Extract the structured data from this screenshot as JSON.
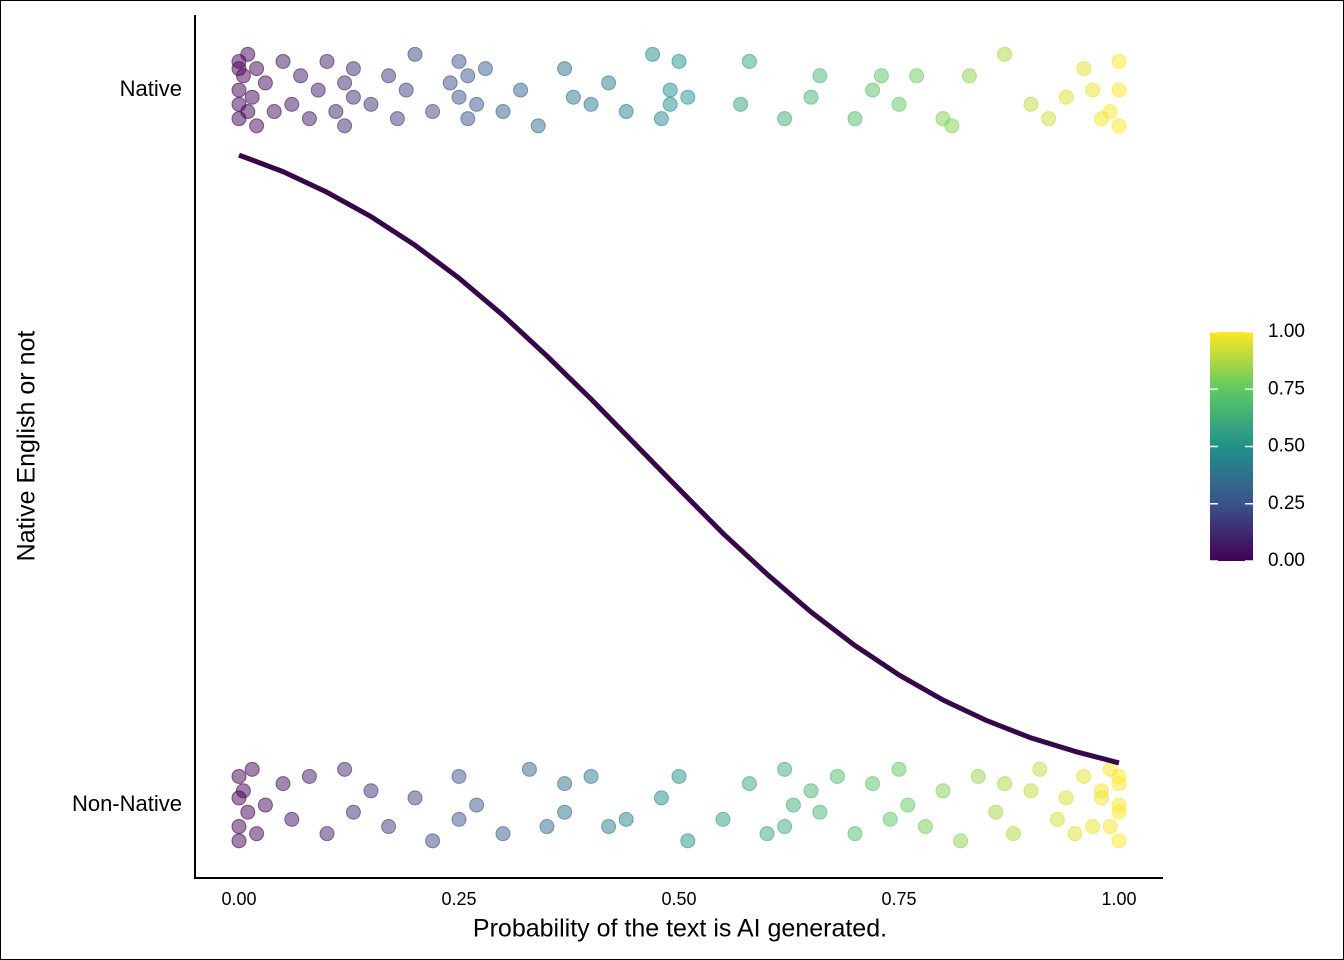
{
  "chart_data": {
    "type": "scatter",
    "xlabel": "Probability of the text is  AI generated.",
    "ylabel": "Native English or not",
    "xlim": [
      -0.05,
      1.05
    ],
    "xticks": [
      {
        "value": 0,
        "label": "0.00"
      },
      {
        "value": 0.25,
        "label": "0.25"
      },
      {
        "value": 0.5,
        "label": "0.50"
      },
      {
        "value": 0.75,
        "label": "0.75"
      },
      {
        "value": 1,
        "label": "1.00"
      }
    ],
    "ylim": [
      -0.102,
      1.105
    ],
    "yticks": [
      {
        "value": 0,
        "label": "Non-Native"
      },
      {
        "value": 1,
        "label": "Native"
      }
    ],
    "series": [
      {
        "x": [
          0,
          0,
          0,
          0,
          0,
          0.005,
          0.01,
          0.01,
          0.015,
          0.02,
          0.02,
          0.03,
          0.04,
          0.05,
          0.06,
          0.07,
          0.08,
          0.09,
          0.1,
          0.11,
          0.12,
          0.12,
          0.13,
          0.13,
          0.15,
          0.17,
          0.18,
          0.19,
          0.2,
          0.22,
          0.24,
          0.25,
          0.25,
          0.26,
          0.26,
          0.27,
          0.28,
          0.3,
          0.32,
          0.34,
          0.37,
          0.38,
          0.4,
          0.42,
          0.44,
          0.47,
          0.48,
          0.49,
          0.49,
          0.5,
          0.51,
          0.57,
          0.58,
          0.62,
          0.65,
          0.66,
          0.7,
          0.72,
          0.73,
          0.75,
          0.77,
          0.8,
          0.81,
          0.83,
          0.87,
          0.9,
          0.92,
          0.94,
          0.96,
          0.97,
          0.98,
          0.99,
          1.0,
          1.0,
          1.0
        ],
        "y": [
          1.04,
          0.96,
          1.0,
          0.98,
          1.03,
          1.02,
          0.97,
          1.05,
          0.99,
          0.95,
          1.03,
          1.01,
          0.97,
          1.04,
          0.98,
          1.02,
          0.96,
          1.0,
          1.04,
          0.97,
          1.01,
          0.95,
          1.03,
          0.99,
          0.98,
          1.02,
          0.96,
          1.0,
          1.05,
          0.97,
          1.01,
          1.04,
          0.99,
          0.96,
          1.02,
          0.98,
          1.03,
          0.97,
          1.0,
          0.95,
          1.03,
          0.99,
          0.98,
          1.01,
          0.97,
          1.05,
          0.96,
          1.0,
          0.98,
          1.04,
          0.99,
          0.98,
          1.04,
          0.96,
          0.99,
          1.02,
          0.96,
          1.0,
          1.02,
          0.98,
          1.02,
          0.96,
          0.95,
          1.02,
          1.05,
          0.98,
          0.96,
          0.99,
          1.03,
          1.0,
          0.96,
          0.97,
          1.04,
          1.0,
          0.95
        ]
      },
      {
        "x": [
          0,
          0,
          0,
          0,
          0.005,
          0.01,
          0.015,
          0.02,
          0.03,
          0.05,
          0.06,
          0.08,
          0.1,
          0.12,
          0.13,
          0.15,
          0.17,
          0.2,
          0.22,
          0.25,
          0.25,
          0.27,
          0.3,
          0.33,
          0.35,
          0.37,
          0.37,
          0.4,
          0.42,
          0.44,
          0.48,
          0.5,
          0.51,
          0.55,
          0.58,
          0.6,
          0.62,
          0.62,
          0.63,
          0.65,
          0.66,
          0.68,
          0.7,
          0.72,
          0.74,
          0.75,
          0.76,
          0.78,
          0.8,
          0.82,
          0.84,
          0.86,
          0.87,
          0.88,
          0.9,
          0.91,
          0.93,
          0.94,
          0.95,
          0.96,
          0.97,
          0.98,
          0.99,
          1.0,
          1.0,
          1.0,
          1.0,
          0.99,
          0.98,
          1.0
        ],
        "y": [
          0.04,
          -0.03,
          0.01,
          -0.05,
          0.02,
          -0.01,
          0.05,
          -0.04,
          0.0,
          0.03,
          -0.02,
          0.04,
          -0.04,
          0.05,
          -0.01,
          0.02,
          -0.03,
          0.01,
          -0.05,
          0.04,
          -0.02,
          0.0,
          -0.04,
          0.05,
          -0.03,
          0.03,
          -0.01,
          0.04,
          -0.03,
          -0.02,
          0.01,
          0.04,
          -0.05,
          -0.02,
          0.03,
          -0.04,
          0.05,
          -0.03,
          0.0,
          0.02,
          -0.01,
          0.04,
          -0.04,
          0.03,
          -0.02,
          0.05,
          0.0,
          -0.03,
          0.02,
          -0.05,
          0.04,
          -0.01,
          0.03,
          -0.04,
          0.02,
          0.05,
          -0.02,
          0.01,
          -0.04,
          0.04,
          -0.03,
          0.02,
          0.05,
          -0.05,
          0.03,
          -0.01,
          0.04,
          -0.03,
          0.01,
          0.0
        ]
      }
    ],
    "curve": {
      "color": "#36084a",
      "x": [
        0,
        0.05,
        0.1,
        0.15,
        0.2,
        0.25,
        0.3,
        0.35,
        0.4,
        0.45,
        0.5,
        0.55,
        0.6,
        0.65,
        0.7,
        0.75,
        0.8,
        0.85,
        0.9,
        0.95,
        1.0
      ],
      "y": [
        0.909,
        0.886,
        0.857,
        0.823,
        0.783,
        0.737,
        0.685,
        0.628,
        0.568,
        0.505,
        0.442,
        0.38,
        0.323,
        0.27,
        0.223,
        0.182,
        0.147,
        0.118,
        0.094,
        0.075,
        0.059
      ]
    },
    "colorbar": {
      "lim": [
        0,
        1
      ],
      "ticks": [
        {
          "value": 0,
          "label": "0.00"
        },
        {
          "value": 0.25,
          "label": "0.25"
        },
        {
          "value": 0.5,
          "label": "0.50"
        },
        {
          "value": 0.75,
          "label": "0.75"
        },
        {
          "value": 1,
          "label": "1.00"
        }
      ],
      "colors": [
        "#440154",
        "#3b528b",
        "#21918c",
        "#5ec962",
        "#fde725"
      ]
    }
  }
}
